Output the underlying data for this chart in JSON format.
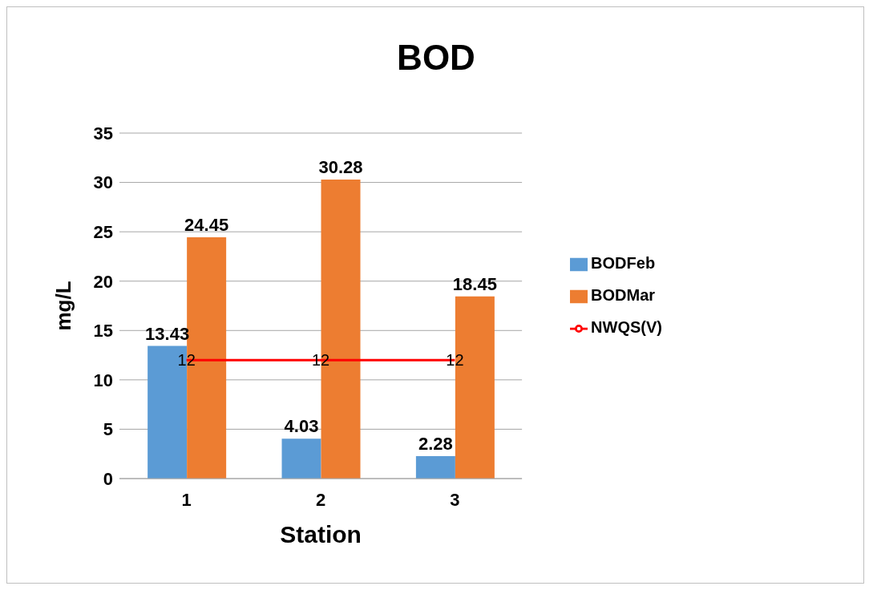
{
  "chart_data": {
    "type": "bar",
    "title": "BOD",
    "xlabel": "Station",
    "ylabel": "mg/L",
    "categories": [
      "1",
      "2",
      "3"
    ],
    "series": [
      {
        "name": "BODFeb",
        "color": "#5b9bd5",
        "values": [
          13.43,
          4.03,
          2.28
        ]
      },
      {
        "name": "BODMar",
        "color": "#ed7d31",
        "values": [
          24.45,
          30.28,
          18.45
        ]
      },
      {
        "name": "NWQS(V)",
        "type": "line",
        "color": "#ff0000",
        "values": [
          12,
          12,
          12
        ]
      }
    ],
    "ylim": [
      0,
      35
    ],
    "yticks": [
      0,
      5,
      10,
      15,
      20,
      25,
      30,
      35
    ],
    "grid": "y",
    "legend": "right",
    "data_labels": true,
    "marker": "none",
    "line_style": "solid"
  }
}
